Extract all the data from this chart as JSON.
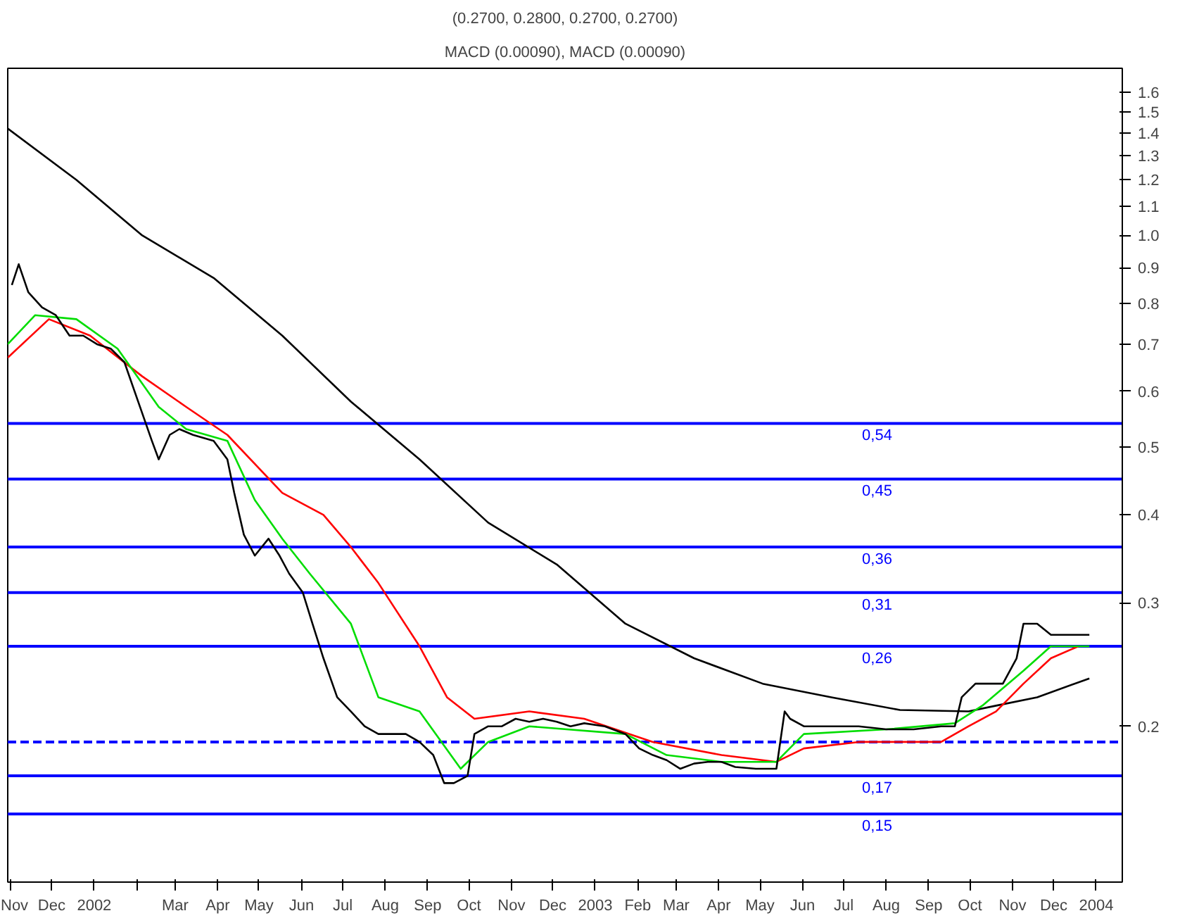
{
  "chart_data": {
    "type": "line",
    "title": "(0.2700, 0.2800, 0.2700, 0.2700)",
    "annotations": [
      "MACD (0.00090), MACD (0.00090)"
    ],
    "log": "y",
    "grid": false,
    "line_style": "solid",
    "marker": "none",
    "xlim": [
      "2001-10-30",
      "2004-01-20"
    ],
    "xticks": [
      {
        "value": "2001-11-01",
        "label": "Nov"
      },
      {
        "value": "2001-12-01",
        "label": "Dec"
      },
      {
        "value": "2002-01-01",
        "label": "2002"
      },
      {
        "value": "2002-02-01",
        "label": null
      },
      {
        "value": "2002-03-01",
        "label": "Mar"
      },
      {
        "value": "2002-04-01",
        "label": "Apr"
      },
      {
        "value": "2002-05-01",
        "label": "May"
      },
      {
        "value": "2002-06-01",
        "label": "Jun"
      },
      {
        "value": "2002-07-01",
        "label": "Jul"
      },
      {
        "value": "2002-08-01",
        "label": "Aug"
      },
      {
        "value": "2002-09-01",
        "label": "Sep"
      },
      {
        "value": "2002-10-01",
        "label": "Oct"
      },
      {
        "value": "2002-11-01",
        "label": "Nov"
      },
      {
        "value": "2002-12-01",
        "label": "Dec"
      },
      {
        "value": "2003-01-01",
        "label": "2003"
      },
      {
        "value": "2003-02-01",
        "label": "Feb"
      },
      {
        "value": "2003-03-01",
        "label": "Mar"
      },
      {
        "value": "2003-04-01",
        "label": "Apr"
      },
      {
        "value": "2003-05-01",
        "label": "May"
      },
      {
        "value": "2003-06-01",
        "label": "Jun"
      },
      {
        "value": "2003-07-01",
        "label": "Jul"
      },
      {
        "value": "2003-08-01",
        "label": "Aug"
      },
      {
        "value": "2003-09-01",
        "label": "Sep"
      },
      {
        "value": "2003-10-01",
        "label": "Oct"
      },
      {
        "value": "2003-11-01",
        "label": "Nov"
      },
      {
        "value": "2003-12-01",
        "label": "Dec"
      },
      {
        "value": "2004-01-01",
        "label": "2004"
      }
    ],
    "ylim": [
      0.12,
      1.73
    ],
    "yticks": [
      0.2,
      0.3,
      0.4,
      0.5,
      0.6,
      0.7,
      0.8,
      0.9,
      {
        "value": 1,
        "label": "1.0"
      },
      1.1,
      1.2,
      1.3,
      1.4,
      1.5,
      1.6
    ],
    "series": [
      {
        "color": "#000000",
        "x": [
          "2001-10-30",
          "2001-12-19",
          "2002-02-05",
          "2002-03-29",
          "2002-05-18",
          "2002-07-07",
          "2002-08-26",
          "2002-10-15",
          "2002-12-04",
          "2003-01-23",
          "2003-03-14",
          "2003-05-03",
          "2003-06-22",
          "2003-08-11",
          "2003-09-30",
          "2003-10-20",
          "2003-11-19",
          "2003-12-27"
        ],
        "values": [
          1.42,
          1.2,
          1.0,
          0.87,
          0.72,
          0.58,
          0.48,
          0.39,
          0.34,
          0.28,
          0.25,
          0.23,
          0.22,
          0.211,
          0.21,
          0.214,
          0.22,
          0.234
        ]
      },
      {
        "color": "#ff0000",
        "x": [
          "2001-10-30",
          "2001-11-29",
          "2001-12-29",
          "2002-02-05",
          "2002-03-09",
          "2002-04-08",
          "2002-05-18",
          "2002-06-17",
          "2002-07-07",
          "2002-07-27",
          "2002-08-26",
          "2002-09-15",
          "2002-10-05",
          "2002-11-14",
          "2002-12-24",
          "2003-02-12",
          "2003-04-03",
          "2003-05-13",
          "2003-06-02",
          "2003-07-12",
          "2003-09-10",
          "2003-09-30",
          "2003-10-20",
          "2003-11-09",
          "2003-11-29",
          "2003-12-19"
        ],
        "values": [
          0.67,
          0.76,
          0.72,
          0.63,
          0.57,
          0.52,
          0.43,
          0.4,
          0.36,
          0.32,
          0.26,
          0.22,
          0.205,
          0.21,
          0.205,
          0.19,
          0.182,
          0.178,
          0.186,
          0.19,
          0.19,
          0.2,
          0.21,
          0.23,
          0.25,
          0.26
        ]
      },
      {
        "color": "#00dd00",
        "x": [
          "2001-10-30",
          "2001-11-19",
          "2001-12-19",
          "2002-01-18",
          "2002-02-17",
          "2002-03-09",
          "2002-04-08",
          "2002-04-28",
          "2002-05-18",
          "2002-06-07",
          "2002-07-07",
          "2002-07-27",
          "2002-08-26",
          "2002-09-25",
          "2002-10-15",
          "2002-11-14",
          "2003-01-23",
          "2003-02-22",
          "2003-04-03",
          "2003-05-13",
          "2003-06-02",
          "2003-08-01",
          "2003-09-20",
          "2003-10-10",
          "2003-11-09",
          "2003-11-29",
          "2003-12-27"
        ],
        "values": [
          0.7,
          0.77,
          0.76,
          0.69,
          0.57,
          0.53,
          0.51,
          0.42,
          0.37,
          0.33,
          0.28,
          0.22,
          0.21,
          0.174,
          0.19,
          0.2,
          0.195,
          0.182,
          0.178,
          0.178,
          0.195,
          0.198,
          0.202,
          0.214,
          0.24,
          0.26,
          0.26
        ]
      },
      {
        "color": "#000000",
        "x": [
          "2001-11-02",
          "2001-11-07",
          "2001-11-14",
          "2001-11-24",
          "2001-12-04",
          "2001-12-14",
          "2001-12-24",
          "2002-01-03",
          "2002-01-13",
          "2002-01-23",
          "2002-02-02",
          "2002-02-12",
          "2002-02-17",
          "2002-02-25",
          "2002-03-04",
          "2002-03-14",
          "2002-03-29",
          "2002-04-08",
          "2002-04-13",
          "2002-04-20",
          "2002-04-28",
          "2002-05-08",
          "2002-05-16",
          "2002-05-23",
          "2002-06-02",
          "2002-06-09",
          "2002-06-17",
          "2002-06-27",
          "2002-07-07",
          "2002-07-17",
          "2002-07-27",
          "2002-08-06",
          "2002-08-16",
          "2002-08-26",
          "2002-09-05",
          "2002-09-13",
          "2002-09-20",
          "2002-09-30",
          "2002-10-05",
          "2002-10-15",
          "2002-10-25",
          "2002-11-04",
          "2002-11-14",
          "2002-11-24",
          "2002-12-04",
          "2002-12-14",
          "2002-12-24",
          "2003-01-08",
          "2003-01-23",
          "2003-02-02",
          "2003-02-12",
          "2003-02-22",
          "2003-03-04",
          "2003-03-14",
          "2003-03-24",
          "2003-04-03",
          "2003-04-13",
          "2003-04-28",
          "2003-05-13",
          "2003-05-19",
          "2003-05-23",
          "2003-06-02",
          "2003-06-22",
          "2003-07-12",
          "2003-08-01",
          "2003-08-21",
          "2003-09-10",
          "2003-09-20",
          "2003-09-25",
          "2003-10-05",
          "2003-10-15",
          "2003-10-25",
          "2003-11-04",
          "2003-11-09",
          "2003-11-19",
          "2003-11-29",
          "2003-12-09",
          "2003-12-19",
          "2003-12-27"
        ],
        "values": [
          0.85,
          0.91,
          0.83,
          0.79,
          0.77,
          0.72,
          0.72,
          0.7,
          0.69,
          0.66,
          0.58,
          0.51,
          0.48,
          0.52,
          0.53,
          0.52,
          0.51,
          0.48,
          0.43,
          0.375,
          0.35,
          0.37,
          0.35,
          0.33,
          0.31,
          0.28,
          0.25,
          0.22,
          0.21,
          0.2,
          0.195,
          0.195,
          0.195,
          0.19,
          0.182,
          0.166,
          0.166,
          0.17,
          0.195,
          0.2,
          0.2,
          0.205,
          0.203,
          0.205,
          0.203,
          0.2,
          0.202,
          0.2,
          0.195,
          0.186,
          0.182,
          0.179,
          0.174,
          0.177,
          0.178,
          0.178,
          0.175,
          0.174,
          0.174,
          0.21,
          0.205,
          0.2,
          0.2,
          0.2,
          0.198,
          0.198,
          0.2,
          0.2,
          0.22,
          0.23,
          0.23,
          0.23,
          0.25,
          0.28,
          0.28,
          0.27,
          0.27,
          0.27,
          0.27
        ]
      }
    ],
    "ref_lines": [
      {
        "axis": "y",
        "value": 0.54,
        "label": "0,54",
        "color": "#0000ff"
      },
      {
        "axis": "y",
        "value": 0.45,
        "label": "0,45",
        "color": "#0000ff"
      },
      {
        "axis": "y",
        "value": 0.36,
        "label": "0,36",
        "color": "#0000ff"
      },
      {
        "axis": "y",
        "value": 0.31,
        "label": "0,31",
        "color": "#0000ff"
      },
      {
        "axis": "y",
        "value": 0.26,
        "label": "0,26",
        "color": "#0000ff"
      },
      {
        "axis": "y",
        "value": 0.19,
        "label": null,
        "color": "#0000ff",
        "line_style": "dashed"
      },
      {
        "axis": "y",
        "value": 0.17,
        "label": "0,17",
        "color": "#0000ff"
      },
      {
        "axis": "y",
        "value": 0.15,
        "label": "0,15",
        "color": "#0000ff"
      }
    ]
  }
}
